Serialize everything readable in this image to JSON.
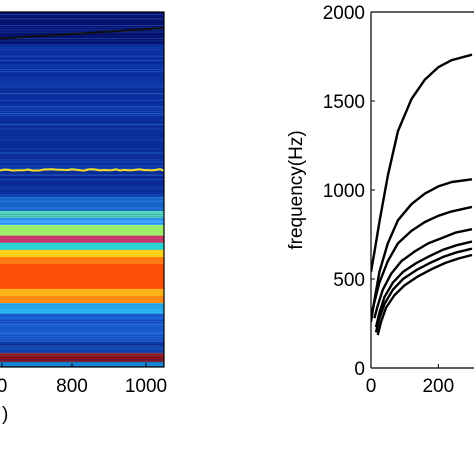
{
  "chart_data": [
    {
      "type": "heatmap",
      "title": "",
      "xlabel": ")",
      "ylabel": "",
      "xticks": [
        "0",
        "800",
        "1000"
      ],
      "colormap": "jet",
      "horizontal_bands": [
        {
          "from": 0.0,
          "to": 1.0,
          "color": "#0a1a7a"
        },
        {
          "from": 0.0,
          "to": 0.09,
          "color": "#06106c"
        },
        {
          "from": 0.09,
          "to": 0.45,
          "color": "#0b2f9e"
        },
        {
          "from": 0.45,
          "to": 0.52,
          "color": "#0a2a96"
        },
        {
          "from": 0.52,
          "to": 0.56,
          "color": "#1b6fd2"
        },
        {
          "from": 0.56,
          "to": 0.58,
          "color": "#58e0c0"
        },
        {
          "from": 0.58,
          "to": 0.6,
          "color": "#3aa8ff"
        },
        {
          "from": 0.6,
          "to": 0.63,
          "color": "#9ef06a"
        },
        {
          "from": 0.63,
          "to": 0.65,
          "color": "#c43a6a"
        },
        {
          "from": 0.65,
          "to": 0.67,
          "color": "#2bd4d4"
        },
        {
          "from": 0.67,
          "to": 0.69,
          "color": "#ffd21a"
        },
        {
          "from": 0.69,
          "to": 0.71,
          "color": "#ff7a10"
        },
        {
          "from": 0.71,
          "to": 0.78,
          "color": "#ff5008"
        },
        {
          "from": 0.78,
          "to": 0.8,
          "color": "#ffb21a"
        },
        {
          "from": 0.8,
          "to": 0.82,
          "color": "#ff8a12"
        },
        {
          "from": 0.82,
          "to": 0.85,
          "color": "#2ab8f0"
        },
        {
          "from": 0.85,
          "to": 0.93,
          "color": "#1c60d4"
        },
        {
          "from": 0.93,
          "to": 0.96,
          "color": "#0e3aa6"
        },
        {
          "from": 0.96,
          "to": 0.985,
          "color": "#9a1010"
        },
        {
          "from": 0.985,
          "to": 1.0,
          "color": "#1a8ad8"
        }
      ],
      "overlay_lines": [
        {
          "color": "#111111",
          "y_start": 0.075,
          "y_end": 0.045
        },
        {
          "color": "#f5e020",
          "y_start": 0.445,
          "y_end": 0.445
        }
      ]
    },
    {
      "type": "line",
      "title": "",
      "xlabel": "",
      "ylabel": "frequency(Hz)",
      "xlim": [
        0,
        560
      ],
      "ylim": [
        0,
        2000
      ],
      "xticks": [
        0,
        200
      ],
      "yticks": [
        0,
        500,
        1000,
        1500,
        2000
      ],
      "grid": false,
      "series": [
        {
          "x": [
            0,
            10,
            25,
            50,
            80,
            120,
            160,
            200,
            240,
            300
          ],
          "values": [
            540,
            650,
            820,
            1080,
            1330,
            1510,
            1620,
            1690,
            1730,
            1760
          ]
        },
        {
          "x": [
            0,
            10,
            25,
            50,
            80,
            120,
            160,
            200,
            240,
            300
          ],
          "values": [
            260,
            380,
            540,
            700,
            830,
            920,
            980,
            1020,
            1045,
            1060
          ]
        },
        {
          "x": [
            0,
            10,
            25,
            50,
            80,
            120,
            160,
            200,
            240,
            300
          ],
          "values": [
            290,
            370,
            480,
            600,
            700,
            770,
            820,
            855,
            880,
            905
          ]
        },
        {
          "x": [
            10,
            20,
            35,
            60,
            90,
            130,
            170,
            210,
            250,
            300
          ],
          "values": [
            280,
            350,
            440,
            530,
            600,
            655,
            700,
            730,
            760,
            780
          ]
        },
        {
          "x": [
            15,
            25,
            40,
            65,
            95,
            135,
            175,
            215,
            255,
            300
          ],
          "values": [
            230,
            310,
            400,
            480,
            540,
            590,
            630,
            665,
            690,
            710
          ]
        },
        {
          "x": [
            15,
            25,
            40,
            65,
            95,
            135,
            175,
            215,
            255,
            300
          ],
          "values": [
            200,
            280,
            360,
            440,
            500,
            550,
            590,
            625,
            650,
            670
          ]
        },
        {
          "x": [
            20,
            30,
            45,
            70,
            100,
            140,
            180,
            220,
            260,
            300
          ],
          "values": [
            185,
            260,
            340,
            410,
            465,
            515,
            555,
            590,
            615,
            635
          ]
        }
      ]
    }
  ]
}
